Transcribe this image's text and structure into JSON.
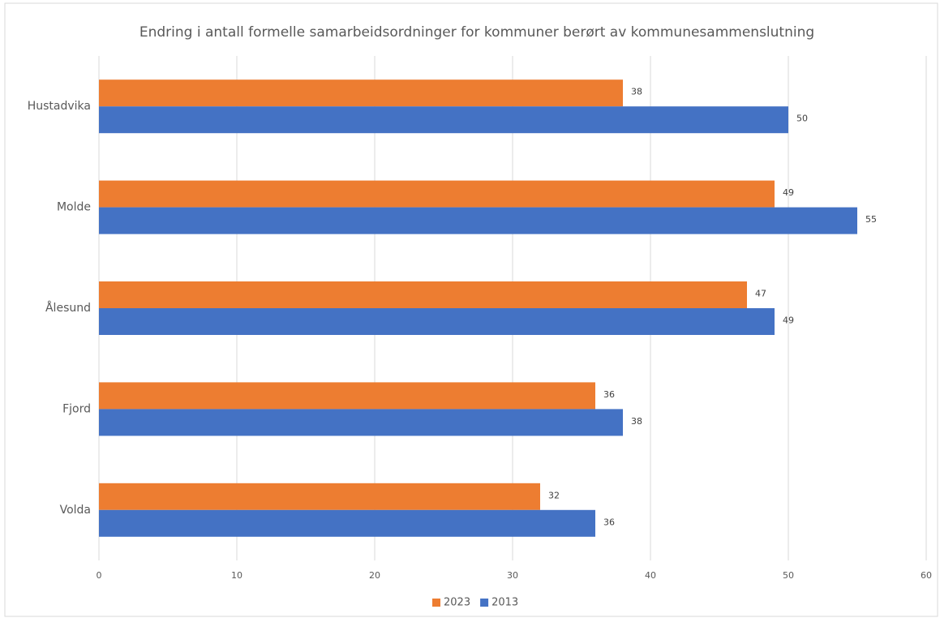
{
  "chart_data": {
    "type": "bar",
    "orientation": "horizontal",
    "title": "Endring i antall formelle samarbeidsordninger for kommuner berørt av kommunesammenslutning",
    "categories": [
      "Hustadvika",
      "Molde",
      "Ålesund",
      "Fjord",
      "Volda"
    ],
    "series": [
      {
        "name": "2023",
        "color": "#ed7d31",
        "values": [
          38,
          49,
          47,
          36,
          32
        ]
      },
      {
        "name": "2013",
        "color": "#4472c4",
        "values": [
          50,
          55,
          49,
          38,
          36
        ]
      }
    ],
    "xlim": [
      0,
      60
    ],
    "xticks": [
      0,
      10,
      20,
      30,
      40,
      50,
      60
    ],
    "grid": true,
    "legend": "bottom"
  }
}
